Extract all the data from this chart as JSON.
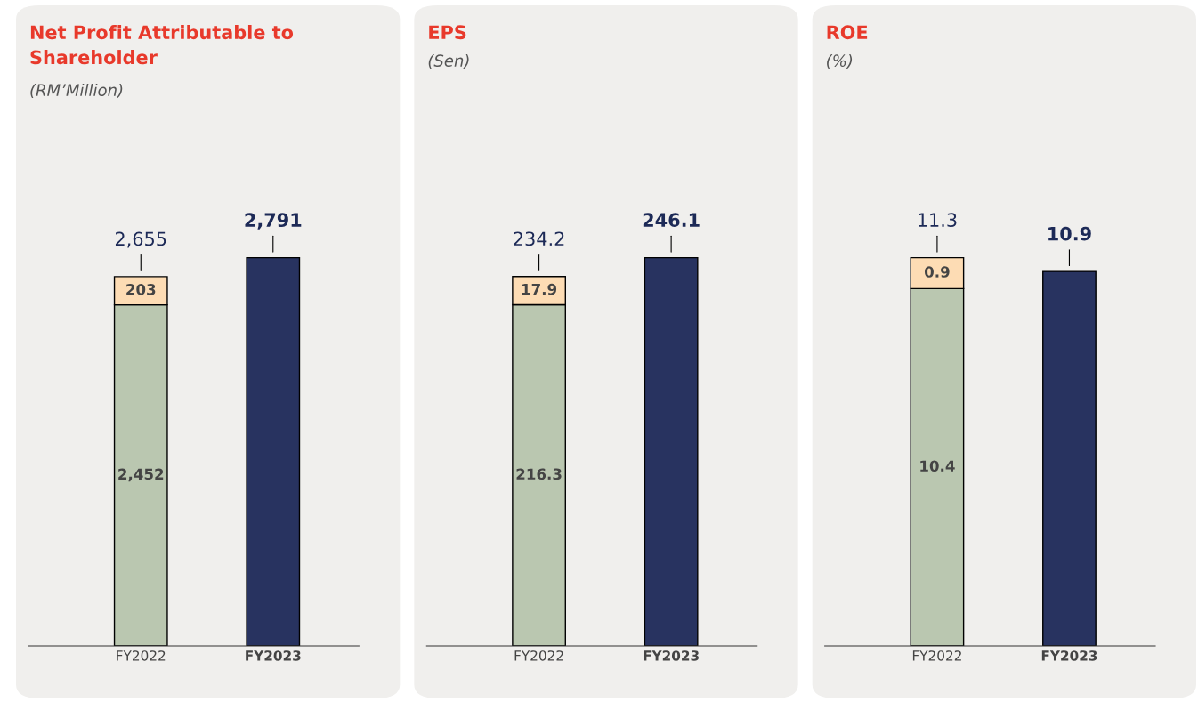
{
  "chart_data": [
    {
      "type": "bar",
      "title": "Net Profit Attributable to Shareholder",
      "subtitle": "(RM’Million)",
      "categories": [
        "FY2022",
        "FY2023"
      ],
      "stacked": true,
      "tick_labels": "x",
      "series": [
        {
          "values": [
            2452,
            2791
          ],
          "colors": [
            "#bac7b0",
            "#283360"
          ],
          "value_labels": [
            "2,452",
            null
          ]
        },
        {
          "values": [
            203,
            null
          ],
          "color": "#fddcb4",
          "value_labels": [
            "203",
            null
          ]
        }
      ],
      "totals": [
        "2,655",
        "2,791"
      ]
    },
    {
      "type": "bar",
      "title": "EPS",
      "subtitle": "(Sen)",
      "categories": [
        "FY2022",
        "FY2023"
      ],
      "stacked": true,
      "tick_labels": "x",
      "series": [
        {
          "values": [
            216.3,
            246.1
          ],
          "colors": [
            "#bac7b0",
            "#283360"
          ],
          "value_labels": [
            "216.3",
            null
          ]
        },
        {
          "values": [
            17.9,
            null
          ],
          "color": "#fddcb4",
          "value_labels": [
            "17.9",
            null
          ]
        }
      ],
      "totals": [
        "234.2",
        "246.1"
      ]
    },
    {
      "type": "bar",
      "title": "ROE",
      "subtitle": "(%)",
      "categories": [
        "FY2022",
        "FY2023"
      ],
      "stacked": true,
      "tick_labels": "x",
      "series": [
        {
          "values": [
            10.4,
            10.9
          ],
          "colors": [
            "#bac7b0",
            "#283360"
          ],
          "value_labels": [
            "10.4",
            null
          ]
        },
        {
          "values": [
            0.9,
            null
          ],
          "color": "#fddcb4",
          "value_labels": [
            "0.9",
            null
          ]
        }
      ],
      "totals": [
        "11.3",
        "10.9"
      ]
    }
  ]
}
